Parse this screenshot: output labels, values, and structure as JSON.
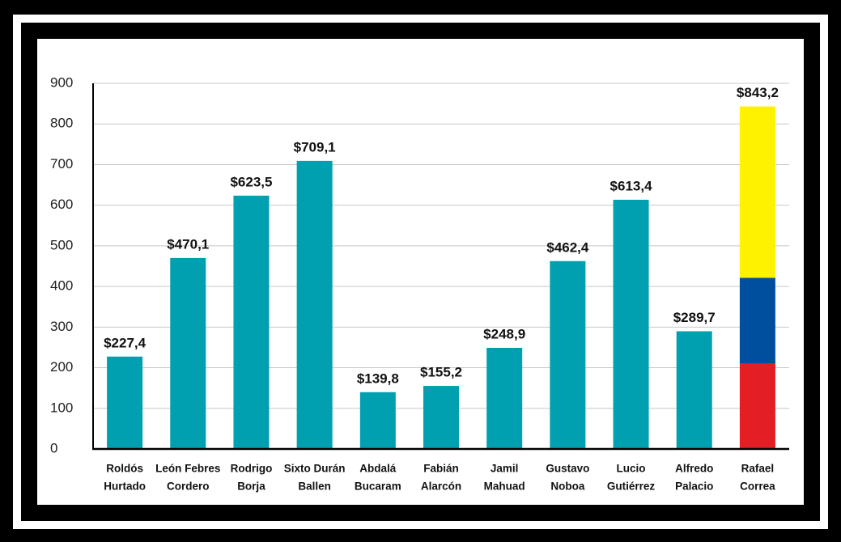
{
  "chart_data": {
    "type": "bar",
    "categories": [
      [
        "Roldós",
        "Hurtado"
      ],
      [
        "León Febres",
        "Cordero"
      ],
      [
        "Rodrigo",
        "Borja"
      ],
      [
        "Sixto Durán",
        "Ballen"
      ],
      [
        "Abdalá",
        "Bucaram"
      ],
      [
        "Fabián",
        "Alarcón"
      ],
      [
        "Jamil",
        "Mahuad"
      ],
      [
        "Gustavo",
        "Noboa"
      ],
      [
        "Lucio",
        "Gutiérrez"
      ],
      [
        "Alfredo",
        "Palacio"
      ],
      [
        "Rafael",
        "Correa"
      ]
    ],
    "values": [
      227.4,
      470.1,
      623.5,
      709.1,
      139.8,
      155.2,
      248.9,
      462.4,
      613.4,
      289.7,
      843.2
    ],
    "value_labels": [
      "$227,4",
      "$470,1",
      "$623,5",
      "$709,1",
      "$139,8",
      "$155,2",
      "$248,9",
      "$462,4",
      "$613,4",
      "$289,7",
      "$843,2"
    ],
    "color": "#00a0b0",
    "highlight": {
      "index": 10,
      "colors": [
        "#fff200",
        "#004f9f",
        "#e31e24"
      ]
    },
    "ylim": [
      0,
      900
    ],
    "yticks": [
      0,
      100,
      200,
      300,
      400,
      500,
      600,
      700,
      800,
      900
    ],
    "grid": true
  }
}
